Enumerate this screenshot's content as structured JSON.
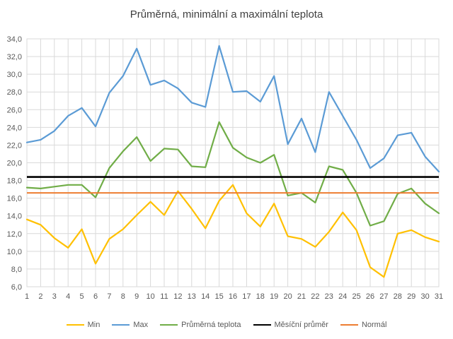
{
  "title": "Průměrná, minimální a maximální teplota",
  "chart_data": {
    "type": "line",
    "title": "Průměrná, minimální a maximální teplota",
    "x": [
      1,
      2,
      3,
      4,
      5,
      6,
      7,
      8,
      9,
      10,
      11,
      12,
      13,
      14,
      15,
      16,
      17,
      18,
      19,
      20,
      21,
      22,
      23,
      24,
      25,
      26,
      27,
      28,
      29,
      30,
      31
    ],
    "x_tick_labels": [
      "1",
      "2",
      "3",
      "4",
      "5",
      "6",
      "7",
      "8",
      "9",
      "10",
      "11",
      "12",
      "13",
      "14",
      "15",
      "16",
      "17",
      "18",
      "19",
      "20",
      "21",
      "22",
      "23",
      "24",
      "25",
      "26",
      "27",
      "28",
      "29",
      "30",
      "31"
    ],
    "y_tick_labels": [
      "6,0",
      "8,0",
      "10,0",
      "12,0",
      "14,0",
      "16,0",
      "18,0",
      "20,0",
      "22,0",
      "24,0",
      "26,0",
      "28,0",
      "30,0",
      "32,0",
      "34,0"
    ],
    "ylim": [
      6,
      34
    ],
    "ytick_step": 2,
    "grid": true,
    "legend_position": "bottom",
    "series": [
      {
        "name": "Min",
        "color": "#FFC000",
        "width": 2.2,
        "values": [
          13.6,
          13.0,
          11.5,
          10.4,
          12.5,
          8.6,
          11.4,
          12.5,
          14.1,
          15.6,
          14.1,
          16.8,
          14.8,
          12.6,
          15.7,
          17.5,
          14.3,
          12.8,
          15.4,
          11.7,
          11.4,
          10.5,
          12.2,
          14.4,
          12.4,
          8.2,
          7.1,
          12.0,
          12.4,
          11.6,
          11.1
        ]
      },
      {
        "name": "Max",
        "color": "#5B9BD5",
        "width": 2.2,
        "values": [
          22.3,
          22.6,
          23.6,
          25.3,
          26.2,
          24.1,
          27.9,
          29.8,
          32.9,
          28.8,
          29.3,
          28.4,
          26.8,
          26.3,
          33.2,
          28.0,
          28.1,
          26.9,
          29.8,
          22.1,
          25.0,
          21.2,
          28.0,
          25.3,
          22.6,
          19.4,
          20.5,
          23.1,
          23.4,
          20.7,
          19.0
        ]
      },
      {
        "name": "Průměrná teplota",
        "color": "#70AD47",
        "width": 2.2,
        "values": [
          17.2,
          17.1,
          17.3,
          17.5,
          17.5,
          16.1,
          19.4,
          21.3,
          22.9,
          20.2,
          21.6,
          21.5,
          19.6,
          19.5,
          24.6,
          21.7,
          20.6,
          20.0,
          20.9,
          16.3,
          16.6,
          15.5,
          19.6,
          19.2,
          16.6,
          12.9,
          13.4,
          16.5,
          17.1,
          15.4,
          14.3
        ]
      },
      {
        "name": "Měsíční průměr",
        "color": "#000000",
        "width": 2.6,
        "constant": 18.4
      },
      {
        "name": "Normál",
        "color": "#ED7D31",
        "width": 2.0,
        "constant": 16.6
      }
    ],
    "colors": {
      "grid": "#D9D9D9",
      "axis_text": "#595959",
      "title_text": "#3f3f3f",
      "background": "#ffffff"
    }
  }
}
